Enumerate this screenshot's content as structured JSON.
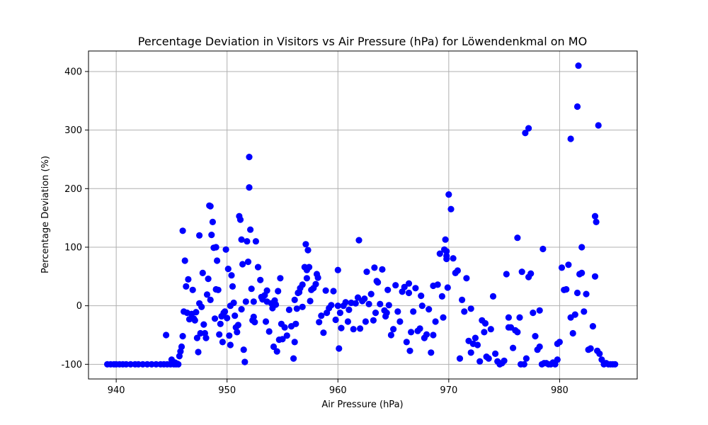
{
  "chart_data": {
    "type": "scatter",
    "title": "Percentage Deviation in Visitors vs Air Pressure (hPa) for Löwendenkmal on MO",
    "xlabel": "Air Pressure (hPa)",
    "ylabel": "Percentage Deviation (%)",
    "xlim": [
      937.5,
      987.0
    ],
    "ylim": [
      -125,
      435
    ],
    "xticks": [
      940,
      950,
      960,
      970,
      980
    ],
    "yticks": [
      -100,
      0,
      100,
      200,
      300,
      400
    ],
    "grid": true,
    "colors": {
      "points": "#0000ff",
      "grid": "#b0b0b0",
      "axis": "#000000"
    },
    "series": [
      {
        "values_x": [
          939.2,
          939.5,
          939.8,
          940.0,
          940.3,
          940.6,
          940.9,
          941.3,
          941.7,
          942.0,
          942.4,
          942.8,
          943.2,
          943.6,
          944.0,
          944.3,
          944.6,
          944.9,
          945.2,
          945.4,
          945.6,
          944.5,
          945.0,
          945.3,
          945.5,
          945.7,
          945.8,
          945.9,
          946.0,
          946.1,
          946.2,
          946.3,
          946.4,
          946.5,
          946.6,
          946.8,
          946.9,
          947.0,
          947.1,
          947.2,
          947.3,
          947.4,
          947.5,
          947.6,
          947.7,
          947.8,
          947.9,
          948.0,
          948.1,
          948.2,
          948.3,
          948.4,
          948.5,
          948.6,
          948.7,
          948.8,
          948.9,
          949.0,
          949.1,
          949.2,
          949.3,
          949.4,
          949.5,
          949.6,
          949.7,
          949.8,
          949.9,
          950.0,
          950.1,
          950.2,
          950.3,
          950.4,
          950.5,
          950.6,
          950.7,
          950.8,
          950.9,
          951.0,
          951.1,
          951.2,
          951.3,
          951.4,
          951.5,
          951.6,
          951.7,
          951.8,
          951.9,
          952.0,
          952.1,
          952.2,
          952.3,
          952.4,
          952.5,
          952.6,
          952.8,
          953.0,
          953.2,
          953.4,
          953.5,
          953.6,
          953.8,
          954.0,
          954.1,
          954.2,
          954.3,
          954.4,
          954.5,
          954.6,
          954.7,
          954.8,
          954.9,
          955.0,
          955.2,
          955.4,
          955.6,
          955.8,
          956.0,
          956.1,
          956.2,
          956.3,
          956.4,
          956.5,
          956.6,
          956.8,
          957.0,
          957.1,
          957.2,
          957.3,
          957.4,
          957.5,
          957.6,
          957.8,
          958.0,
          958.1,
          958.2,
          958.3,
          958.5,
          958.7,
          958.9,
          959.0,
          959.2,
          959.4,
          959.6,
          959.8,
          960.0,
          960.1,
          960.2,
          960.3,
          960.5,
          960.7,
          960.9,
          961.0,
          961.2,
          961.4,
          961.6,
          961.8,
          962.0,
          962.2,
          962.4,
          962.5,
          962.6,
          962.8,
          963.0,
          963.2,
          963.4,
          963.5,
          963.6,
          963.8,
          964.0,
          964.2,
          964.4,
          964.5,
          964.6,
          964.8,
          965.0,
          965.2,
          965.4,
          965.6,
          965.8,
          966.0,
          966.2,
          966.4,
          966.5,
          966.6,
          966.8,
          967.0,
          967.2,
          967.4,
          967.5,
          967.6,
          967.8,
          968.0,
          968.2,
          968.4,
          968.6,
          968.8,
          969.0,
          969.2,
          969.4,
          969.5,
          969.6,
          969.7,
          969.8,
          969.9,
          970.0,
          970.2,
          970.4,
          970.6,
          970.8,
          971.0,
          971.2,
          971.4,
          971.6,
          971.8,
          972.0,
          972.2,
          972.4,
          972.6,
          972.8,
          973.0,
          973.2,
          973.4,
          973.6,
          973.8,
          974.0,
          974.2,
          974.4,
          974.6,
          974.8,
          975.0,
          975.2,
          975.4,
          975.6,
          975.8,
          976.0,
          976.2,
          976.4,
          976.5,
          976.6,
          976.8,
          977.0,
          977.2,
          977.4,
          977.6,
          977.8,
          978.0,
          978.2,
          978.4,
          978.6,
          978.8,
          979.0,
          979.2,
          979.4,
          979.6,
          979.8,
          980.0,
          980.2,
          980.4,
          980.6,
          980.8,
          981.0,
          981.2,
          981.4,
          981.6,
          981.8,
          982.0,
          982.2,
          982.4,
          982.6,
          982.8,
          983.0,
          983.2,
          983.4,
          983.6,
          983.8,
          984.0,
          984.2,
          984.4,
          984.6,
          984.8,
          985.0,
          946.0,
          947.5,
          948.5,
          949.0,
          951.3,
          952.4,
          952.0,
          953.6,
          956.8,
          957.2,
          961.9,
          963.3,
          966.4,
          969.8,
          969.8,
          973.3,
          976.2,
          977.2,
          976.9,
          978.2,
          981.6,
          981.7,
          981.0,
          983.2,
          983.3,
          983.5,
          982.0,
          979.8,
          978.5,
          975.4,
          972.0,
          968.6,
          964.3,
          960.0,
          956.1,
          953.1,
          950.3
        ],
        "values_y": [
          -100,
          -100,
          -100,
          -100,
          -100,
          -100,
          -100,
          -100,
          -100,
          -100,
          -100,
          -100,
          -100,
          -100,
          -100,
          -100,
          -100,
          -100,
          -100,
          -100,
          -100,
          -50,
          -92,
          -97,
          -99,
          -86,
          -78,
          -70,
          -52,
          -10,
          77,
          33,
          -12,
          45,
          -23,
          -14,
          27,
          -22,
          -25,
          -11,
          -55,
          -79,
          4,
          -47,
          -2,
          56,
          -32,
          -47,
          -55,
          19,
          46,
          171,
          10,
          121,
          143,
          99,
          -22,
          28,
          77,
          27,
          -49,
          -31,
          -18,
          -62,
          -12,
          -10,
          96,
          -21,
          63,
          -51,
          -67,
          52,
          33,
          5,
          -17,
          -37,
          -45,
          -33,
          153,
          147,
          113,
          71,
          -75,
          -96,
          7,
          110,
          75,
          202,
          130,
          29,
          -25,
          -19,
          -28,
          110,
          66,
          44,
          11,
          18,
          -27,
          7,
          -44,
          4,
          -4,
          -70,
          9,
          2,
          -78,
          25,
          -58,
          47,
          -31,
          -57,
          -37,
          -51,
          -7,
          -35,
          -90,
          -62,
          -31,
          -5,
          22,
          23,
          30,
          36,
          66,
          105,
          61,
          95,
          66,
          8,
          27,
          30,
          37,
          54,
          48,
          -28,
          -17,
          -46,
          26,
          -12,
          -4,
          1,
          25,
          -24,
          61,
          -73,
          -12,
          -38,
          0,
          6,
          -27,
          -7,
          5,
          -40,
          4,
          14,
          -39,
          8,
          12,
          -27,
          58,
          3,
          20,
          -25,
          -12,
          42,
          40,
          3,
          62,
          -8,
          -12,
          27,
          1,
          -50,
          -40,
          35,
          -10,
          -27,
          24,
          32,
          -62,
          22,
          -77,
          -45,
          -10,
          30,
          -43,
          -39,
          17,
          0,
          -55,
          -49,
          -6,
          -80,
          -50,
          -27,
          36,
          89,
          16,
          -20,
          96,
          113,
          85,
          31,
          190,
          165,
          81,
          56,
          60,
          -90,
          10,
          -10,
          47,
          -60,
          -80,
          -65,
          -55,
          -67,
          -95,
          -25,
          -45,
          -87,
          -90,
          -40,
          16,
          -82,
          -95,
          -100,
          -98,
          -94,
          54,
          -20,
          -37,
          -72,
          -42,
          -45,
          -20,
          -100,
          58,
          -100,
          -90,
          49,
          55,
          -12,
          -52,
          -75,
          -70,
          -100,
          -98,
          -98,
          -100,
          -100,
          -97,
          -100,
          -92,
          -62,
          65,
          27,
          28,
          70,
          -20,
          -47,
          -15,
          22,
          54,
          56,
          -10,
          20,
          -75,
          -73,
          -35,
          50,
          -77,
          -82,
          -92,
          -100,
          -98,
          -100,
          -100,
          -100,
          -100,
          128,
          120,
          170,
          100,
          -6,
          7,
          254,
          26,
          -2,
          47,
          112,
          65,
          38,
          93,
          80,
          -30,
          116,
          303,
          295,
          -8,
          340,
          410,
          285,
          153,
          143,
          308,
          100,
          -65,
          97,
          -37,
          -5,
          34,
          -18,
          0,
          10,
          15,
          0
        ]
      }
    ]
  }
}
